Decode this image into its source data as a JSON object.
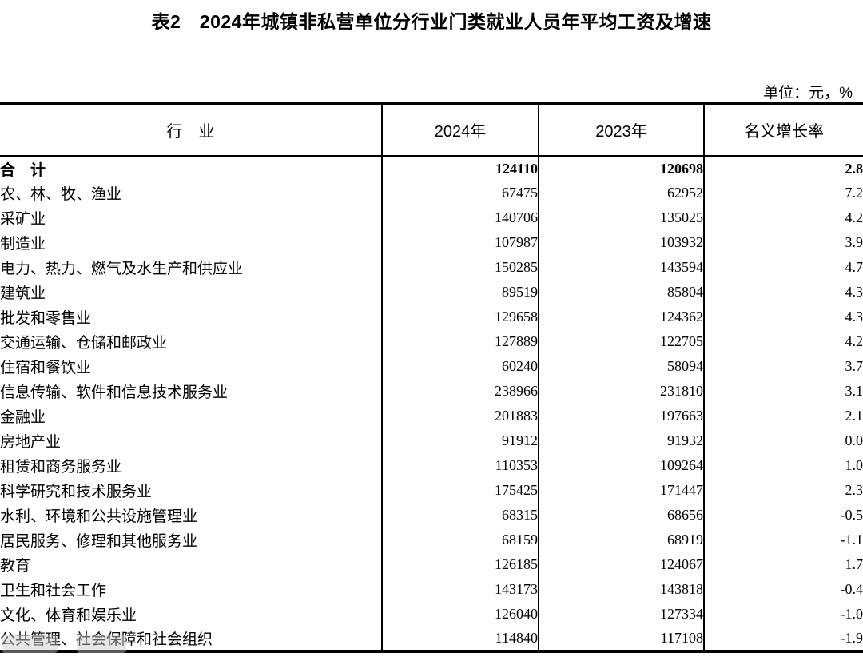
{
  "title": "表2　2024年城镇非私营单位分行业门类就业人员年平均工资及增速",
  "unit_note": "单位：元，%",
  "table": {
    "headers": {
      "industry": "行　业",
      "y2024": "2024年",
      "y2023": "2023年",
      "growth": "名义增长率"
    },
    "rows": [
      {
        "industry": "合　计",
        "y2024": "124110",
        "y2023": "120698",
        "growth": "2.8",
        "bold": true
      },
      {
        "industry": "农、林、牧、渔业",
        "y2024": "67475",
        "y2023": "62952",
        "growth": "7.2",
        "bold": false
      },
      {
        "industry": "采矿业",
        "y2024": "140706",
        "y2023": "135025",
        "growth": "4.2",
        "bold": false
      },
      {
        "industry": "制造业",
        "y2024": "107987",
        "y2023": "103932",
        "growth": "3.9",
        "bold": false
      },
      {
        "industry": "电力、热力、燃气及水生产和供应业",
        "y2024": "150285",
        "y2023": "143594",
        "growth": "4.7",
        "bold": false
      },
      {
        "industry": "建筑业",
        "y2024": "89519",
        "y2023": "85804",
        "growth": "4.3",
        "bold": false
      },
      {
        "industry": "批发和零售业",
        "y2024": "129658",
        "y2023": "124362",
        "growth": "4.3",
        "bold": false
      },
      {
        "industry": "交通运输、仓储和邮政业",
        "y2024": "127889",
        "y2023": "122705",
        "growth": "4.2",
        "bold": false
      },
      {
        "industry": "住宿和餐饮业",
        "y2024": "60240",
        "y2023": "58094",
        "growth": "3.7",
        "bold": false
      },
      {
        "industry": "信息传输、软件和信息技术服务业",
        "y2024": "238966",
        "y2023": "231810",
        "growth": "3.1",
        "bold": false
      },
      {
        "industry": "金融业",
        "y2024": "201883",
        "y2023": "197663",
        "growth": "2.1",
        "bold": false
      },
      {
        "industry": "房地产业",
        "y2024": "91912",
        "y2023": "91932",
        "growth": "0.0",
        "bold": false
      },
      {
        "industry": "租赁和商务服务业",
        "y2024": "110353",
        "y2023": "109264",
        "growth": "1.0",
        "bold": false
      },
      {
        "industry": "科学研究和技术服务业",
        "y2024": "175425",
        "y2023": "171447",
        "growth": "2.3",
        "bold": false
      },
      {
        "industry": "水利、环境和公共设施管理业",
        "y2024": "68315",
        "y2023": "68656",
        "growth": "-0.5",
        "bold": false
      },
      {
        "industry": "居民服务、修理和其他服务业",
        "y2024": "68159",
        "y2023": "68919",
        "growth": "-1.1",
        "bold": false
      },
      {
        "industry": "教育",
        "y2024": "126185",
        "y2023": "124067",
        "growth": "1.7",
        "bold": false
      },
      {
        "industry": "卫生和社会工作",
        "y2024": "143173",
        "y2023": "143818",
        "growth": "-0.4",
        "bold": false
      },
      {
        "industry": "文化、体育和娱乐业",
        "y2024": "126040",
        "y2023": "127334",
        "growth": "-1.0",
        "bold": false
      },
      {
        "industry": "公共管理、社会保障和社会组织",
        "y2024": "114840",
        "y2023": "117108",
        "growth": "-1.9",
        "bold": false
      }
    ]
  }
}
